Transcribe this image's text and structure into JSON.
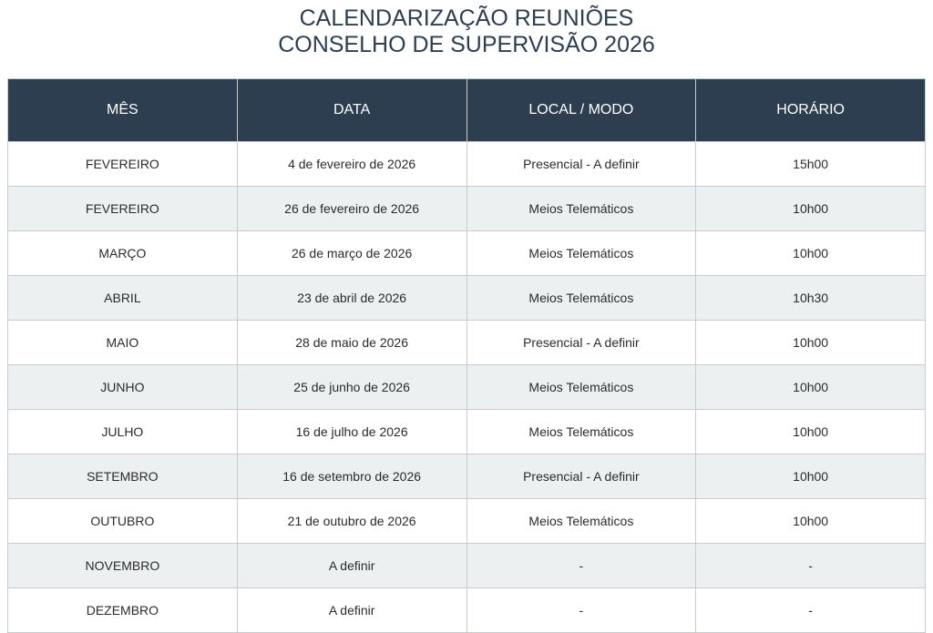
{
  "title": {
    "line1": "CALENDARIZAÇÃO REUNIÕES",
    "line2": "CONSELHO DE SUPERVISÃO 2026"
  },
  "colors": {
    "header_bg": "#2d3e50",
    "alt_row_bg": "#ecf0f1"
  },
  "table": {
    "headers": [
      "MÊS",
      "DATA",
      "LOCAL / MODO",
      "HORÁRIO"
    ],
    "rows": [
      [
        "FEVEREIRO",
        "4 de fevereiro de 2026",
        "Presencial - A definir",
        "15h00"
      ],
      [
        "FEVEREIRO",
        "26 de fevereiro de 2026",
        "Meios Telemáticos",
        "10h00"
      ],
      [
        "MARÇO",
        "26 de março de 2026",
        "Meios Telemáticos",
        "10h00"
      ],
      [
        "ABRIL",
        "23 de abril de 2026",
        "Meios Telemáticos",
        "10h30"
      ],
      [
        "MAIO",
        "28 de maio de 2026",
        "Presencial - A definir",
        "10h00"
      ],
      [
        "JUNHO",
        "25 de junho de 2026",
        "Meios Telemáticos",
        "10h00"
      ],
      [
        "JULHO",
        "16 de julho de 2026",
        "Meios Telemáticos",
        "10h00"
      ],
      [
        "SETEMBRO",
        "16 de setembro de 2026",
        "Presencial - A definir",
        "10h00"
      ],
      [
        "OUTUBRO",
        "21 de outubro de 2026",
        "Meios Telemáticos",
        "10h00"
      ],
      [
        "NOVEMBRO",
        "A definir",
        "-",
        "-"
      ],
      [
        "DEZEMBRO",
        "A definir",
        "-",
        "-"
      ]
    ]
  }
}
